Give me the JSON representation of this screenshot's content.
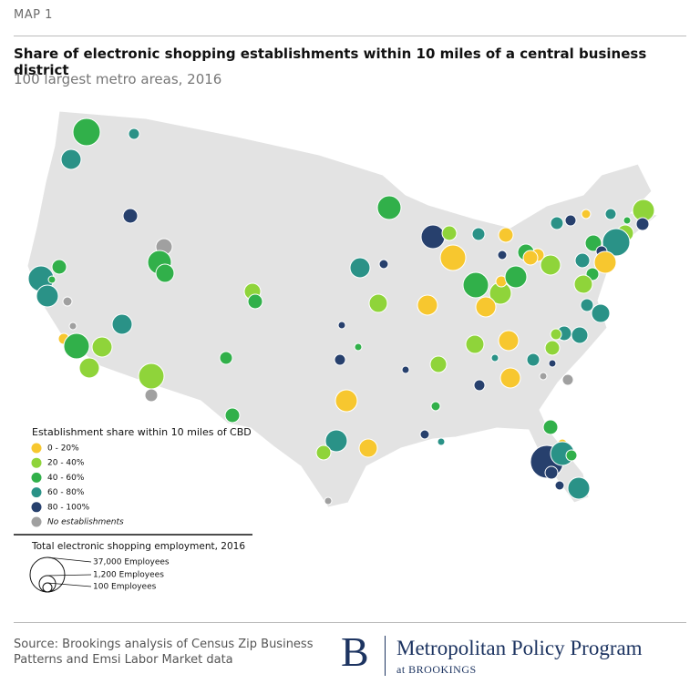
{
  "header": {
    "label": "MAP 1",
    "title": "Share of electronic shopping establishments within 10 miles of a central business district",
    "subtitle": "100 largest metro areas, 2016"
  },
  "legend": {
    "title": "Establishment share within 10 miles of CBD",
    "items": [
      {
        "label": "0 - 20%",
        "color": "#f7c72f"
      },
      {
        "label": "20 - 40%",
        "color": "#8fd43a"
      },
      {
        "label": "40 - 60%",
        "color": "#31b04a"
      },
      {
        "label": "60 - 80%",
        "color": "#2a9287"
      },
      {
        "label": "80 - 100%",
        "color": "#27406d"
      },
      {
        "label": "No establishments",
        "color": "#a0a0a0"
      }
    ]
  },
  "size_legend": {
    "title": "Total electronic shopping employment, 2016",
    "items": [
      "37,000 Employees",
      "1,200 Employees",
      "100 Employees"
    ]
  },
  "source": "Source: Brookings analysis of Census Zip Business Patterns and Emsi Labor Market data",
  "logo": {
    "letter": "B",
    "title": "Metropolitan Policy Program",
    "subtitle": "at BROOKINGS"
  }
}
